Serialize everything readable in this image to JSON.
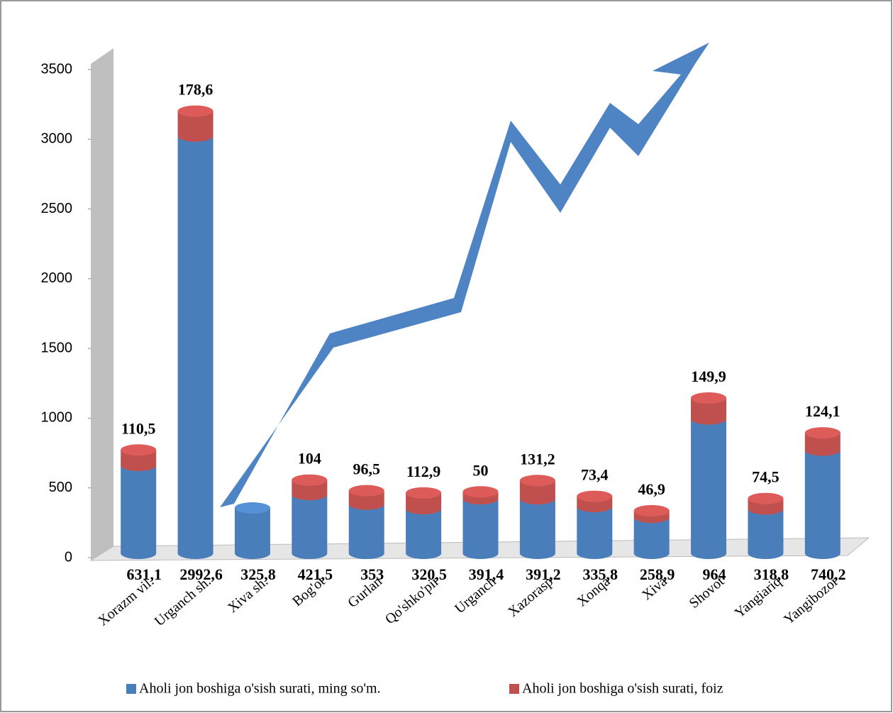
{
  "chart_data": {
    "type": "bar",
    "categories": [
      "Xorazm vil.",
      "Urganch sh.",
      "Xiva sh.",
      "Bog'ot",
      "Gurlan",
      "Qo'shko'pir",
      "Urganch",
      "Xazorasp",
      "Xonqa",
      "Xiva",
      "Shovot",
      "Yangiariq",
      "Yangibozor"
    ],
    "series": [
      {
        "name": "Aholi jon boshiga o'sish surati, ming so'm.",
        "color": "#4a7ebb",
        "values": [
          631.1,
          2992.6,
          325.8,
          421.5,
          353,
          320.5,
          391.4,
          391.2,
          335.8,
          258.9,
          964,
          318.8,
          740.2
        ],
        "value_labels": [
          "631,1",
          "2992,6",
          "325,8",
          "421,5",
          "353",
          "320,5",
          "391,4",
          "391,2",
          "335,8",
          "258,9",
          "964",
          "318,8",
          "740,2"
        ]
      },
      {
        "name": "Aholi jon boshiga o'sish surati, foiz",
        "color": "#c0504d",
        "values": [
          110.5,
          178.6,
          null,
          104,
          96.5,
          112.9,
          50,
          131.2,
          73.4,
          46.9,
          149.9,
          74.5,
          124.1
        ],
        "value_labels": [
          "110,5",
          "178,6",
          null,
          "104",
          "96,5",
          "112,9",
          "50",
          "131,2",
          "73,4",
          "46,9",
          "149,9",
          "74,5",
          "124,1"
        ]
      }
    ],
    "stacked": true,
    "ylim": [
      0,
      3500
    ],
    "yticks": [
      0,
      500,
      1000,
      1500,
      2000,
      2500,
      3000,
      3500
    ]
  }
}
